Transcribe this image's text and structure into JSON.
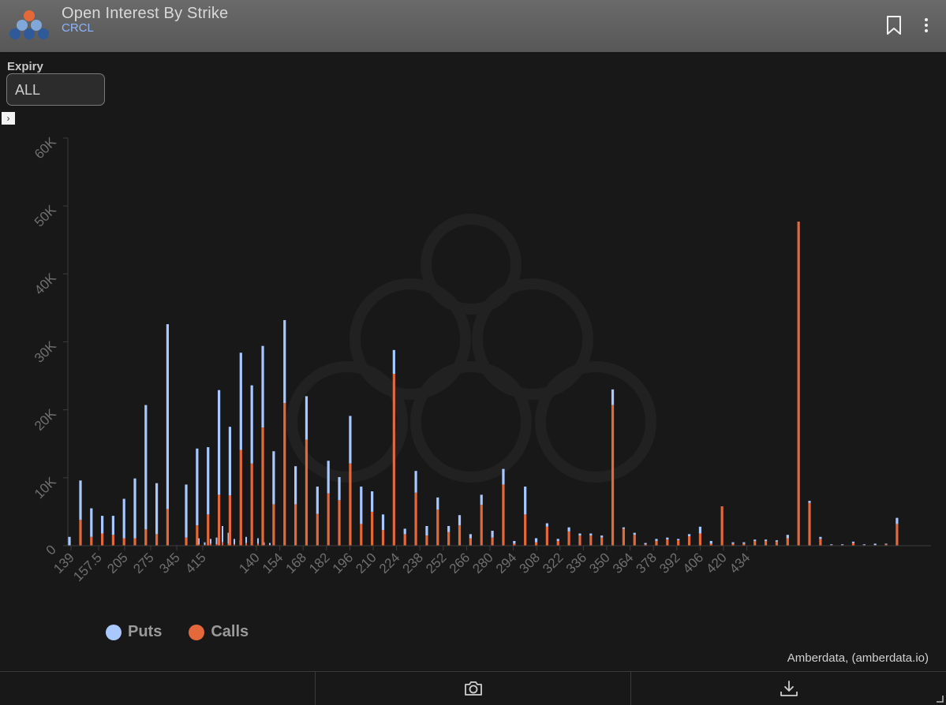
{
  "header": {
    "title": "Open Interest By Strike",
    "symbol": "CRCL",
    "bookmark_icon": "bookmark-icon",
    "menu_icon": "more-vertical-icon"
  },
  "filters": {
    "expiry_label": "Expiry",
    "expiry_value": "ALL"
  },
  "legend": [
    {
      "label": "Puts",
      "color": "#a8c8ff"
    },
    {
      "label": "Calls",
      "color": "#e4683a"
    }
  ],
  "credit": "Amberdata, (amberdata.io)",
  "footer": {
    "camera_icon": "camera-icon",
    "download_icon": "download-icon"
  },
  "colors": {
    "puts": "#a8c8ff",
    "calls": "#e4683a",
    "axis_text": "#6f6f6f",
    "background": "#181818"
  },
  "chart_data": {
    "type": "bar",
    "stacked": true,
    "ylim": [
      0,
      60000
    ],
    "y_ticks": [
      "0",
      "10K",
      "20K",
      "30K",
      "40K",
      "50K",
      "60K"
    ],
    "x_ticks": [
      "139",
      "157.5",
      "205",
      "275",
      "345",
      "415",
      "140",
      "154",
      "168",
      "182",
      "196",
      "210",
      "224",
      "238",
      "252",
      "266",
      "280",
      "294",
      "308",
      "322",
      "336",
      "350",
      "364",
      "378",
      "392",
      "406",
      "420",
      "434"
    ],
    "series": [
      {
        "name": "Calls",
        "values": [
          0,
          3800,
          1300,
          1800,
          1600,
          1100,
          1100,
          2400,
          1700,
          5400,
          1200,
          3000,
          4600,
          7500,
          7400,
          14100,
          12100,
          17400,
          6100,
          21000,
          6100,
          15600,
          4700,
          7700,
          6700,
          12100,
          3200,
          5000,
          2300,
          25300,
          1700,
          7800,
          1500,
          5300,
          2000,
          3000,
          1100,
          6000,
          1200,
          9000,
          300,
          4600,
          500,
          2800,
          700,
          2100,
          1500,
          1500,
          1200,
          20700,
          2500,
          1600,
          200,
          700,
          900,
          800,
          1400,
          1800,
          300,
          5800,
          300,
          300,
          700,
          700,
          600,
          1100,
          47700,
          6300,
          1000,
          100,
          100,
          400,
          100,
          100,
          200,
          3200
        ]
      },
      {
        "name": "Puts",
        "values": [
          1300,
          5800,
          4200,
          2600,
          2800,
          5800,
          8800,
          18300,
          7500,
          27200,
          7800,
          11300,
          9900,
          15400,
          10100,
          14300,
          11500,
          12000,
          7800,
          12200,
          5600,
          6400,
          4000,
          4800,
          3400,
          7000,
          5500,
          3000,
          2300,
          3500,
          800,
          3200,
          1400,
          1800,
          900,
          1500,
          600,
          1500,
          1000,
          2300,
          400,
          4100,
          600,
          500,
          300,
          600,
          300,
          300,
          300,
          2300,
          200,
          300,
          200,
          300,
          300,
          200,
          300,
          1000,
          400,
          0,
          200,
          200,
          200,
          200,
          200,
          500,
          0,
          300,
          300,
          100,
          100,
          200,
          100,
          200,
          100,
          900
        ]
      }
    ],
    "cluster_strikes": {
      "puts": [
        900,
        400,
        700,
        1000,
        2400,
        1600,
        800,
        500,
        900,
        600,
        800,
        400,
        300
      ],
      "calls": [
        200,
        100,
        300,
        200,
        500,
        300,
        200,
        300,
        400,
        200,
        300,
        100,
        100
      ]
    }
  }
}
